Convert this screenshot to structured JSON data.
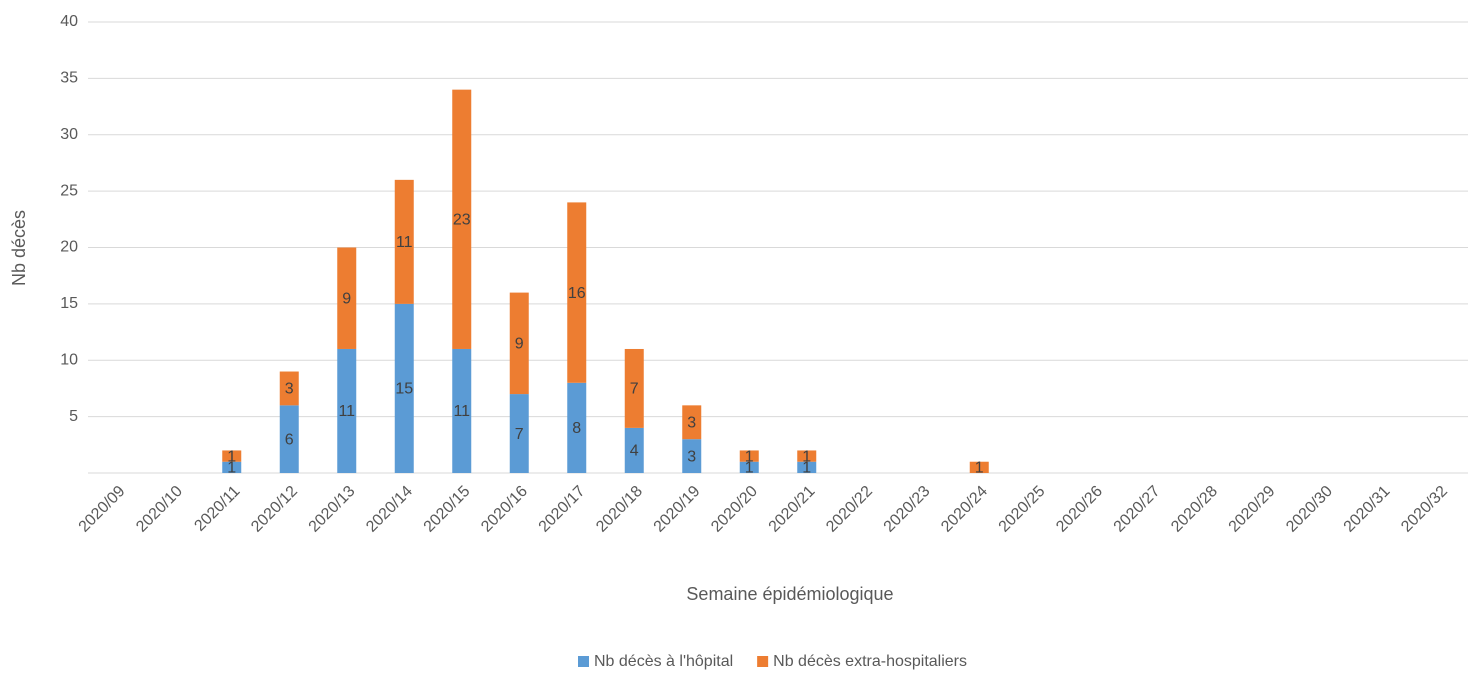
{
  "chart_data": {
    "type": "stacked_bar",
    "x_label": "Semaine épidémiologique",
    "y_label": "Nb décès",
    "categories": [
      "2020/09",
      "2020/10",
      "2020/11",
      "2020/12",
      "2020/13",
      "2020/14",
      "2020/15",
      "2020/16",
      "2020/17",
      "2020/18",
      "2020/19",
      "2020/20",
      "2020/21",
      "2020/22",
      "2020/23",
      "2020/24",
      "2020/25",
      "2020/26",
      "2020/27",
      "2020/28",
      "2020/29",
      "2020/30",
      "2020/31",
      "2020/32"
    ],
    "series": [
      {
        "name": "Nb décès à l'hôpital",
        "color": "#5b9bd5",
        "values": [
          null,
          null,
          1,
          6,
          11,
          15,
          11,
          7,
          8,
          4,
          3,
          1,
          1,
          null,
          null,
          null,
          null,
          null,
          null,
          null,
          null,
          null,
          null,
          null
        ]
      },
      {
        "name": "Nb décès extra-hospitaliers",
        "color": "#ed7d31",
        "values": [
          null,
          null,
          1,
          3,
          9,
          11,
          23,
          9,
          16,
          7,
          3,
          1,
          1,
          null,
          null,
          1,
          null,
          null,
          null,
          null,
          null,
          null,
          null,
          null
        ]
      }
    ],
    "ylim": [
      0,
      40
    ],
    "yticks": [
      5,
      10,
      15,
      20,
      25,
      30,
      35,
      40
    ],
    "grid": true,
    "legend": "bottom"
  }
}
